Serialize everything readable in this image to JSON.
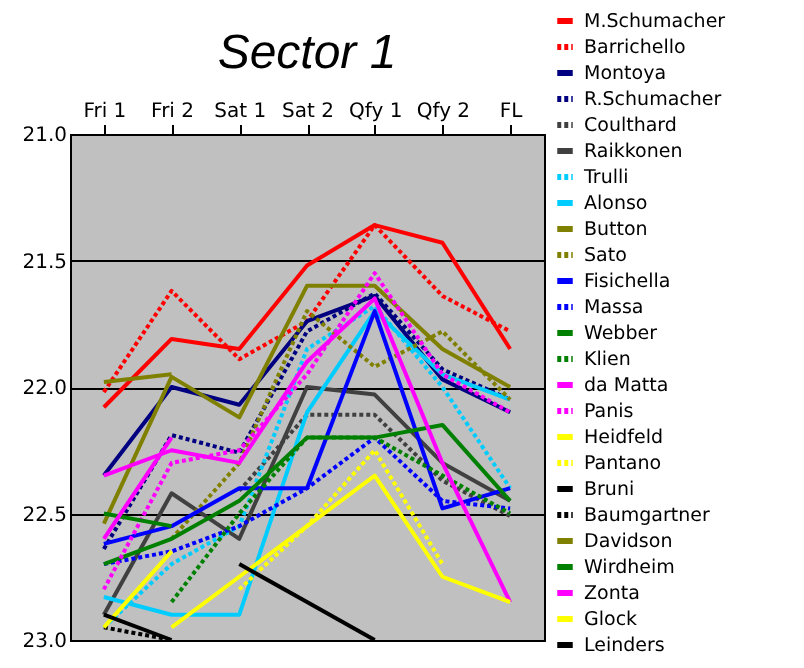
{
  "chart_data": {
    "type": "line",
    "title": "Sector 1",
    "categories": [
      "Fri 1",
      "Fri 2",
      "Sat 1",
      "Sat 2",
      "Qfy 1",
      "Qfy 2",
      "FL"
    ],
    "ylim": [
      23.0,
      21.0
    ],
    "yticks": [
      {
        "value": 21.0,
        "label": "21.0"
      },
      {
        "value": 21.5,
        "label": "21.5"
      },
      {
        "value": 22.0,
        "label": "22.0"
      },
      {
        "value": 22.5,
        "label": "22.5"
      },
      {
        "value": 23.0,
        "label": "23.0"
      }
    ],
    "grid": "y",
    "legend": "right",
    "marker": "none",
    "series": [
      {
        "name": "M.Schumacher",
        "color": "#ff0000",
        "line_style": "solid",
        "values": [
          22.08,
          21.81,
          21.85,
          21.52,
          21.36,
          21.43,
          21.85
        ]
      },
      {
        "name": "Barrichello",
        "color": "#ff0000",
        "line_style": "dotted",
        "values": [
          22.02,
          21.62,
          21.89,
          21.74,
          21.36,
          21.64,
          21.78
        ]
      },
      {
        "name": "Montoya",
        "color": "#000080",
        "line_style": "solid",
        "values": [
          22.35,
          22.0,
          22.07,
          21.74,
          21.64,
          21.97,
          22.1
        ]
      },
      {
        "name": "R.Schumacher",
        "color": "#000080",
        "line_style": "dotted",
        "values": [
          22.64,
          22.19,
          22.26,
          21.78,
          21.63,
          21.93,
          22.05
        ]
      },
      {
        "name": "Coulthard",
        "color": "#404040",
        "line_style": "dotted",
        "values": [
          null,
          null,
          22.41,
          22.11,
          22.11,
          22.37,
          22.51
        ]
      },
      {
        "name": "Raikkonen",
        "color": "#404040",
        "line_style": "solid",
        "values": [
          22.9,
          22.42,
          22.6,
          22.0,
          22.03,
          22.3,
          22.45
        ]
      },
      {
        "name": "Trulli",
        "color": "#00ccff",
        "line_style": "dotted",
        "values": [
          22.95,
          22.7,
          22.55,
          21.85,
          21.68,
          22.0,
          22.4
        ]
      },
      {
        "name": "Alonso",
        "color": "#00ccff",
        "line_style": "solid",
        "values": [
          22.83,
          22.9,
          22.9,
          22.1,
          21.7,
          21.95,
          22.05
        ]
      },
      {
        "name": "Button",
        "color": "#808000",
        "line_style": "solid",
        "values": [
          22.54,
          21.96,
          22.12,
          21.6,
          21.6,
          21.85,
          22.0
        ]
      },
      {
        "name": "Sato",
        "color": "#808000",
        "line_style": "dotted",
        "values": [
          null,
          22.6,
          22.3,
          21.7,
          21.92,
          21.78,
          22.05
        ]
      },
      {
        "name": "Fisichella",
        "color": "#0000ff",
        "line_style": "solid",
        "values": [
          22.62,
          22.55,
          22.4,
          22.4,
          21.7,
          22.48,
          22.4
        ]
      },
      {
        "name": "Massa",
        "color": "#0000ff",
        "line_style": "dotted",
        "values": [
          22.7,
          22.65,
          22.55,
          22.4,
          22.2,
          22.45,
          22.48
        ]
      },
      {
        "name": "Webber",
        "color": "#008000",
        "line_style": "solid",
        "values": [
          22.7,
          22.6,
          22.45,
          22.2,
          22.2,
          22.15,
          22.45
        ]
      },
      {
        "name": "Klien",
        "color": "#008000",
        "line_style": "dotted",
        "values": [
          null,
          22.85,
          22.5,
          22.2,
          22.2,
          22.35,
          22.5
        ]
      },
      {
        "name": "da Matta",
        "color": "#ff00ff",
        "line_style": "solid",
        "values": [
          22.35,
          22.25,
          22.3,
          21.9,
          21.65,
          22.3,
          22.85
        ]
      },
      {
        "name": "Panis",
        "color": "#ff00ff",
        "line_style": "dotted",
        "values": [
          22.8,
          22.3,
          22.25,
          21.95,
          21.55,
          21.95,
          22.1
        ]
      },
      {
        "name": "Heidfeld",
        "color": "#ffff00",
        "line_style": "solid",
        "values": [
          null,
          22.95,
          22.75,
          22.55,
          22.35,
          22.75,
          22.85
        ]
      },
      {
        "name": "Pantano",
        "color": "#ffff00",
        "line_style": "dotted",
        "values": [
          null,
          null,
          22.8,
          22.55,
          22.25,
          22.7,
          null
        ]
      },
      {
        "name": "Bruni",
        "color": "#000000",
        "line_style": "solid",
        "values": [
          null,
          null,
          22.7,
          22.85,
          23.0,
          null,
          null
        ]
      },
      {
        "name": "Baumgartner",
        "color": "#000000",
        "line_style": "dotted",
        "values": [
          22.95,
          23.0,
          null,
          null,
          null,
          null,
          null
        ]
      },
      {
        "name": "Davidson",
        "color": "#808000",
        "line_style": "solid",
        "values": [
          21.98,
          21.95,
          null,
          null,
          null,
          null,
          null
        ]
      },
      {
        "name": "Wirdheim",
        "color": "#008000",
        "line_style": "solid",
        "values": [
          22.5,
          22.55,
          null,
          null,
          null,
          null,
          null
        ]
      },
      {
        "name": "Zonta",
        "color": "#ff00ff",
        "line_style": "solid",
        "values": [
          22.6,
          22.2,
          null,
          null,
          null,
          null,
          null
        ]
      },
      {
        "name": "Glock",
        "color": "#ffff00",
        "line_style": "solid",
        "values": [
          22.95,
          22.65,
          null,
          null,
          null,
          null,
          null
        ]
      },
      {
        "name": "Leinders",
        "color": "#000000",
        "line_style": "solid",
        "values": [
          22.9,
          23.0,
          null,
          null,
          null,
          null,
          null
        ]
      }
    ]
  }
}
